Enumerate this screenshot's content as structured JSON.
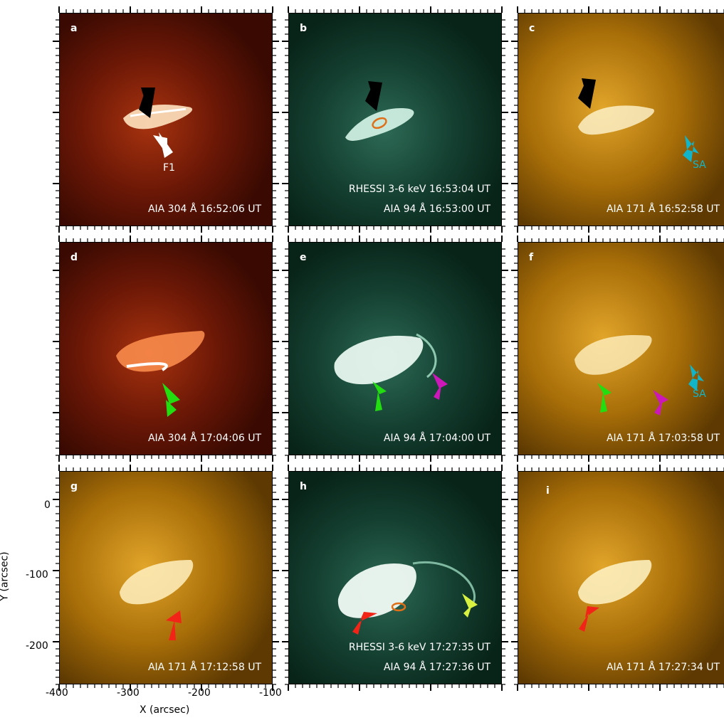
{
  "panels": {
    "a": {
      "label": "a",
      "captions": [
        "AIA 304 Å 16:52:06 UT"
      ],
      "annotation": "F1"
    },
    "b": {
      "label": "b",
      "captions": [
        "RHESSI 3-6 keV 16:53:04 UT",
        "AIA 94 Å 16:53:00 UT"
      ]
    },
    "c": {
      "label": "c",
      "captions": [
        "AIA 171 Å 16:52:58 UT"
      ],
      "annotation": "SA"
    },
    "d": {
      "label": "d",
      "captions": [
        "AIA 304 Å 17:04:06 UT"
      ]
    },
    "e": {
      "label": "e",
      "captions": [
        "AIA 94 Å 17:04:00 UT"
      ]
    },
    "f": {
      "label": "f",
      "captions": [
        "AIA 171 Å 17:03:58 UT"
      ],
      "annotation": "SA"
    },
    "g": {
      "label": "g",
      "captions": [
        "AIA 171 Å 17:12:58 UT"
      ]
    },
    "h": {
      "label": "h",
      "captions": [
        "RHESSI 3-6 keV 17:27:35 UT",
        "AIA 94 Å 17:27:36 UT"
      ]
    },
    "i": {
      "label": "i",
      "captions": [
        "AIA 171 Å  17:27:34 UT"
      ]
    }
  },
  "axes": {
    "x_label": "X (arcsec)",
    "y_label": "Y (arcsec)",
    "x_ticks": [
      "-400",
      "-300",
      "-200",
      "-100"
    ],
    "y_ticks": [
      "0",
      "-100",
      "-200"
    ]
  },
  "colors": {
    "aia304": "#5a1204",
    "aia94": "#0f3a2c",
    "aia171": "#a86e08",
    "arrow_black": "#000000",
    "arrow_white": "#ffffff",
    "arrow_cyan": "#12b4c8",
    "arrow_green": "#22dd10",
    "arrow_magenta": "#cc18b8",
    "arrow_red": "#f22418",
    "arrow_yellow": "#d8f040",
    "contour_orange": "#e07018",
    "sa_text": "#12b4c8"
  }
}
